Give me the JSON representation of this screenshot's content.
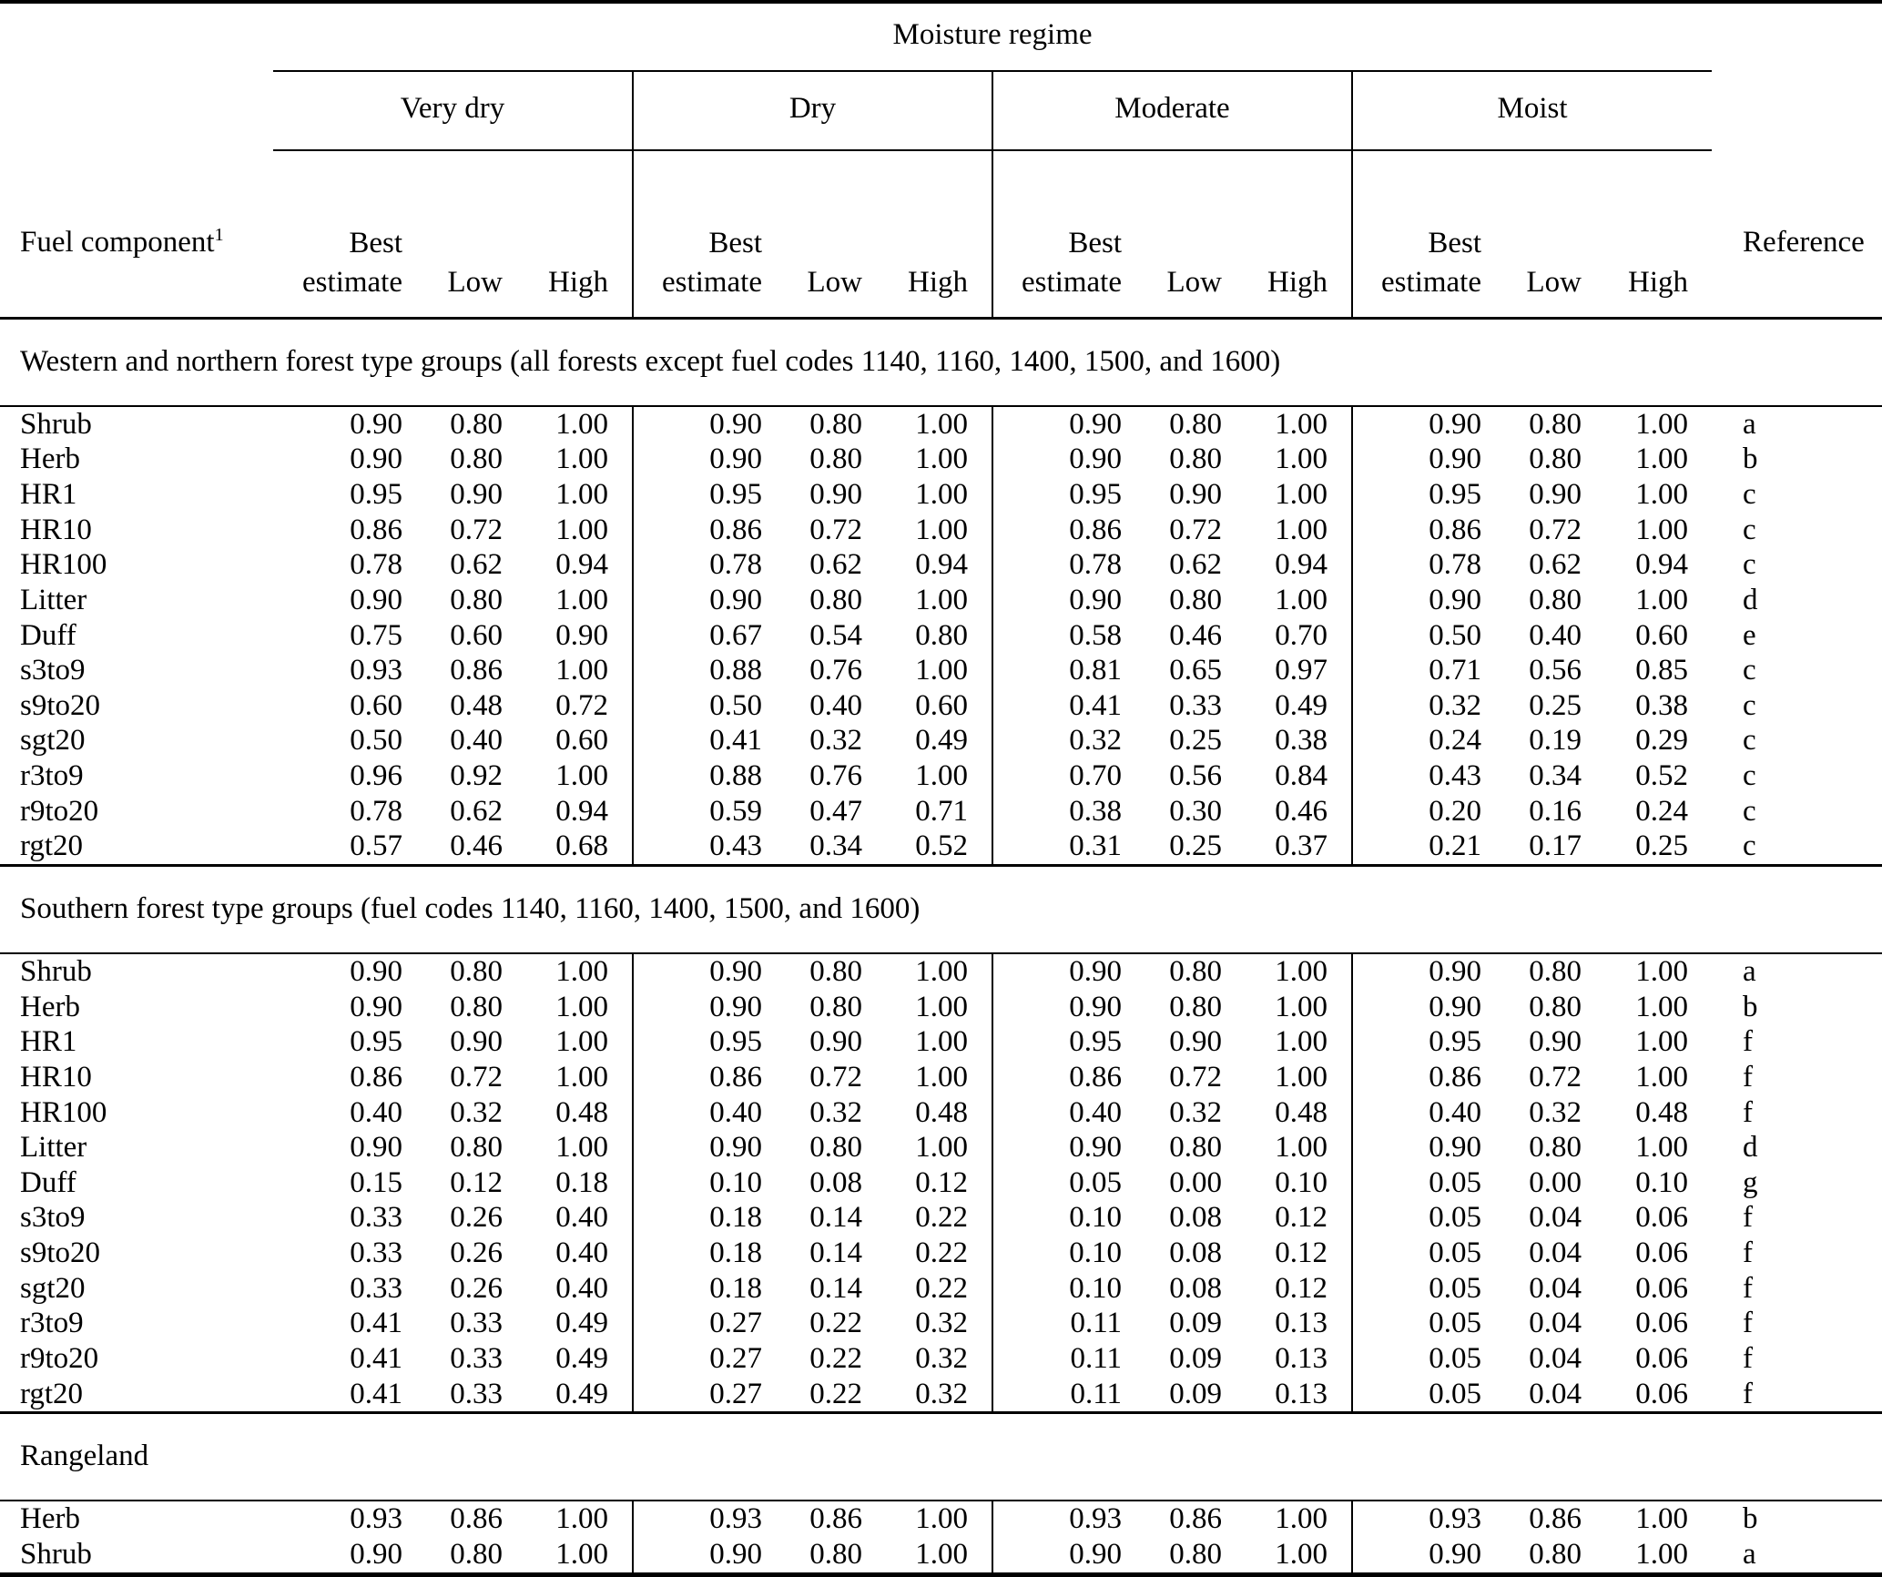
{
  "table": {
    "group_title": "Moisture regime",
    "fuel_header": "Fuel component",
    "fuel_header_superscript": "1",
    "reference_header": "Reference",
    "regimes": [
      "Very dry",
      "Dry",
      "Moderate",
      "Moist"
    ],
    "subheader": {
      "best_line1": "Best",
      "best_line2": "estimate",
      "low": "Low",
      "high": "High"
    },
    "sections": [
      {
        "label": "Western and northern forest type groups (all forests except fuel codes 1140, 1160, 1400, 1500, and 1600)",
        "rows": [
          {
            "fuel": "Shrub",
            "values": [
              "0.90",
              "0.80",
              "1.00",
              "0.90",
              "0.80",
              "1.00",
              "0.90",
              "0.80",
              "1.00",
              "0.90",
              "0.80",
              "1.00"
            ],
            "ref": "a"
          },
          {
            "fuel": "Herb",
            "values": [
              "0.90",
              "0.80",
              "1.00",
              "0.90",
              "0.80",
              "1.00",
              "0.90",
              "0.80",
              "1.00",
              "0.90",
              "0.80",
              "1.00"
            ],
            "ref": "b"
          },
          {
            "fuel": "HR1",
            "values": [
              "0.95",
              "0.90",
              "1.00",
              "0.95",
              "0.90",
              "1.00",
              "0.95",
              "0.90",
              "1.00",
              "0.95",
              "0.90",
              "1.00"
            ],
            "ref": "c"
          },
          {
            "fuel": "HR10",
            "values": [
              "0.86",
              "0.72",
              "1.00",
              "0.86",
              "0.72",
              "1.00",
              "0.86",
              "0.72",
              "1.00",
              "0.86",
              "0.72",
              "1.00"
            ],
            "ref": "c"
          },
          {
            "fuel": "HR100",
            "values": [
              "0.78",
              "0.62",
              "0.94",
              "0.78",
              "0.62",
              "0.94",
              "0.78",
              "0.62",
              "0.94",
              "0.78",
              "0.62",
              "0.94"
            ],
            "ref": "c"
          },
          {
            "fuel": "Litter",
            "values": [
              "0.90",
              "0.80",
              "1.00",
              "0.90",
              "0.80",
              "1.00",
              "0.90",
              "0.80",
              "1.00",
              "0.90",
              "0.80",
              "1.00"
            ],
            "ref": "d"
          },
          {
            "fuel": "Duff",
            "values": [
              "0.75",
              "0.60",
              "0.90",
              "0.67",
              "0.54",
              "0.80",
              "0.58",
              "0.46",
              "0.70",
              "0.50",
              "0.40",
              "0.60"
            ],
            "ref": "e"
          },
          {
            "fuel": "s3to9",
            "values": [
              "0.93",
              "0.86",
              "1.00",
              "0.88",
              "0.76",
              "1.00",
              "0.81",
              "0.65",
              "0.97",
              "0.71",
              "0.56",
              "0.85"
            ],
            "ref": "c"
          },
          {
            "fuel": "s9to20",
            "values": [
              "0.60",
              "0.48",
              "0.72",
              "0.50",
              "0.40",
              "0.60",
              "0.41",
              "0.33",
              "0.49",
              "0.32",
              "0.25",
              "0.38"
            ],
            "ref": "c"
          },
          {
            "fuel": "sgt20",
            "values": [
              "0.50",
              "0.40",
              "0.60",
              "0.41",
              "0.32",
              "0.49",
              "0.32",
              "0.25",
              "0.38",
              "0.24",
              "0.19",
              "0.29"
            ],
            "ref": "c"
          },
          {
            "fuel": "r3to9",
            "values": [
              "0.96",
              "0.92",
              "1.00",
              "0.88",
              "0.76",
              "1.00",
              "0.70",
              "0.56",
              "0.84",
              "0.43",
              "0.34",
              "0.52"
            ],
            "ref": "c"
          },
          {
            "fuel": "r9to20",
            "values": [
              "0.78",
              "0.62",
              "0.94",
              "0.59",
              "0.47",
              "0.71",
              "0.38",
              "0.30",
              "0.46",
              "0.20",
              "0.16",
              "0.24"
            ],
            "ref": "c"
          },
          {
            "fuel": "rgt20",
            "values": [
              "0.57",
              "0.46",
              "0.68",
              "0.43",
              "0.34",
              "0.52",
              "0.31",
              "0.25",
              "0.37",
              "0.21",
              "0.17",
              "0.25"
            ],
            "ref": "c"
          }
        ]
      },
      {
        "label": "Southern forest type groups (fuel codes 1140, 1160, 1400, 1500, and 1600)",
        "rows": [
          {
            "fuel": "Shrub",
            "values": [
              "0.90",
              "0.80",
              "1.00",
              "0.90",
              "0.80",
              "1.00",
              "0.90",
              "0.80",
              "1.00",
              "0.90",
              "0.80",
              "1.00"
            ],
            "ref": "a"
          },
          {
            "fuel": "Herb",
            "values": [
              "0.90",
              "0.80",
              "1.00",
              "0.90",
              "0.80",
              "1.00",
              "0.90",
              "0.80",
              "1.00",
              "0.90",
              "0.80",
              "1.00"
            ],
            "ref": "b"
          },
          {
            "fuel": "HR1",
            "values": [
              "0.95",
              "0.90",
              "1.00",
              "0.95",
              "0.90",
              "1.00",
              "0.95",
              "0.90",
              "1.00",
              "0.95",
              "0.90",
              "1.00"
            ],
            "ref": "f"
          },
          {
            "fuel": "HR10",
            "values": [
              "0.86",
              "0.72",
              "1.00",
              "0.86",
              "0.72",
              "1.00",
              "0.86",
              "0.72",
              "1.00",
              "0.86",
              "0.72",
              "1.00"
            ],
            "ref": "f"
          },
          {
            "fuel": "HR100",
            "values": [
              "0.40",
              "0.32",
              "0.48",
              "0.40",
              "0.32",
              "0.48",
              "0.40",
              "0.32",
              "0.48",
              "0.40",
              "0.32",
              "0.48"
            ],
            "ref": "f"
          },
          {
            "fuel": "Litter",
            "values": [
              "0.90",
              "0.80",
              "1.00",
              "0.90",
              "0.80",
              "1.00",
              "0.90",
              "0.80",
              "1.00",
              "0.90",
              "0.80",
              "1.00"
            ],
            "ref": "d"
          },
          {
            "fuel": "Duff",
            "values": [
              "0.15",
              "0.12",
              "0.18",
              "0.10",
              "0.08",
              "0.12",
              "0.05",
              "0.00",
              "0.10",
              "0.05",
              "0.00",
              "0.10"
            ],
            "ref": "g"
          },
          {
            "fuel": "s3to9",
            "values": [
              "0.33",
              "0.26",
              "0.40",
              "0.18",
              "0.14",
              "0.22",
              "0.10",
              "0.08",
              "0.12",
              "0.05",
              "0.04",
              "0.06"
            ],
            "ref": "f"
          },
          {
            "fuel": "s9to20",
            "values": [
              "0.33",
              "0.26",
              "0.40",
              "0.18",
              "0.14",
              "0.22",
              "0.10",
              "0.08",
              "0.12",
              "0.05",
              "0.04",
              "0.06"
            ],
            "ref": "f"
          },
          {
            "fuel": "sgt20",
            "values": [
              "0.33",
              "0.26",
              "0.40",
              "0.18",
              "0.14",
              "0.22",
              "0.10",
              "0.08",
              "0.12",
              "0.05",
              "0.04",
              "0.06"
            ],
            "ref": "f"
          },
          {
            "fuel": "r3to9",
            "values": [
              "0.41",
              "0.33",
              "0.49",
              "0.27",
              "0.22",
              "0.32",
              "0.11",
              "0.09",
              "0.13",
              "0.05",
              "0.04",
              "0.06"
            ],
            "ref": "f"
          },
          {
            "fuel": "r9to20",
            "values": [
              "0.41",
              "0.33",
              "0.49",
              "0.27",
              "0.22",
              "0.32",
              "0.11",
              "0.09",
              "0.13",
              "0.05",
              "0.04",
              "0.06"
            ],
            "ref": "f"
          },
          {
            "fuel": "rgt20",
            "values": [
              "0.41",
              "0.33",
              "0.49",
              "0.27",
              "0.22",
              "0.32",
              "0.11",
              "0.09",
              "0.13",
              "0.05",
              "0.04",
              "0.06"
            ],
            "ref": "f"
          }
        ]
      },
      {
        "label": "Rangeland",
        "rows": [
          {
            "fuel": "Herb",
            "values": [
              "0.93",
              "0.86",
              "1.00",
              "0.93",
              "0.86",
              "1.00",
              "0.93",
              "0.86",
              "1.00",
              "0.93",
              "0.86",
              "1.00"
            ],
            "ref": "b"
          },
          {
            "fuel": "Shrub",
            "values": [
              "0.90",
              "0.80",
              "1.00",
              "0.90",
              "0.80",
              "1.00",
              "0.90",
              "0.80",
              "1.00",
              "0.90",
              "0.80",
              "1.00"
            ],
            "ref": "a"
          }
        ]
      }
    ]
  }
}
